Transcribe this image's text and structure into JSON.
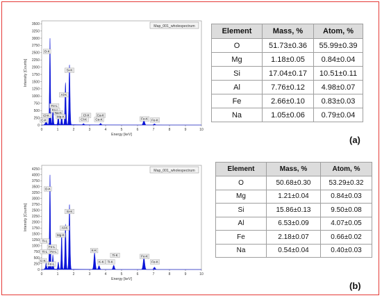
{
  "chart_data": [
    {
      "type": "line",
      "legend": "Map_001_wholespectrum",
      "xlabel": "Energy [keV]",
      "ylabel": "Intensity [Counts]",
      "xlim": [
        0,
        10
      ],
      "ylim": [
        0,
        3600
      ],
      "xticks": [
        "0",
        "1",
        "2",
        "3",
        "4",
        "5",
        "6",
        "7",
        "8",
        "9",
        "10"
      ],
      "yticks": [
        "0",
        "250",
        "500",
        "750",
        "1000",
        "1250",
        "1500",
        "1750",
        "2000",
        "2250",
        "2500",
        "2750",
        "3000",
        "3250",
        "3500"
      ],
      "peaks": [
        {
          "x": 0.28,
          "y": 180,
          "w": 0.035
        },
        {
          "x": 0.52,
          "y": 2980,
          "w": 0.03
        },
        {
          "x": 0.7,
          "y": 540,
          "w": 0.03
        },
        {
          "x": 1.04,
          "y": 360,
          "w": 0.03
        },
        {
          "x": 1.25,
          "y": 420,
          "w": 0.03
        },
        {
          "x": 1.49,
          "y": 1450,
          "w": 0.035
        },
        {
          "x": 1.74,
          "y": 2080,
          "w": 0.035
        },
        {
          "x": 2.62,
          "y": 40,
          "w": 0.04
        },
        {
          "x": 3.69,
          "y": 55,
          "w": 0.04
        },
        {
          "x": 6.4,
          "y": 160,
          "w": 0.05
        },
        {
          "x": 7.06,
          "y": 40,
          "w": 0.05
        }
      ],
      "labels": [
        {
          "text": "O-K",
          "x": 0.1,
          "y": 2500
        },
        {
          "text": "Si-K",
          "x": 1.45,
          "y": 1850
        },
        {
          "text": "Al-K",
          "x": 1.1,
          "y": 1000
        },
        {
          "text": "Fe-L",
          "x": 0.5,
          "y": 620
        },
        {
          "text": "Fe-L",
          "x": 0.55,
          "y": 470
        },
        {
          "text": "Na-K",
          "x": 0.75,
          "y": 380
        },
        {
          "text": "Mg-K",
          "x": 0.9,
          "y": 250
        },
        {
          "text": "Cl-K",
          "x": 0.0,
          "y": 280
        },
        {
          "text": "C-K",
          "x": -0.1,
          "y": 130
        },
        {
          "text": "Cl-K",
          "x": 2.5,
          "y": 290
        },
        {
          "text": "Cl-K",
          "x": 2.35,
          "y": 150
        },
        {
          "text": "Ca-K",
          "x": 3.4,
          "y": 290
        },
        {
          "text": "Ca-K",
          "x": 3.3,
          "y": 150
        },
        {
          "text": "Fe-K",
          "x": 6.15,
          "y": 170
        },
        {
          "text": "Fe-K",
          "x": 6.8,
          "y": 130
        }
      ]
    },
    {
      "type": "line",
      "legend": "Map_001_wholespectrum",
      "xlabel": "Energy [keV]",
      "ylabel": "Intensity [Counts]",
      "xlim": [
        0,
        10
      ],
      "ylim": [
        0,
        4400
      ],
      "xticks": [
        "0",
        "1",
        "2",
        "3",
        "4",
        "5",
        "6",
        "7",
        "8",
        "9",
        "10"
      ],
      "yticks": [
        "0",
        "250",
        "500",
        "750",
        "1000",
        "1250",
        "1500",
        "1750",
        "2000",
        "2250",
        "2500",
        "2750",
        "3000",
        "3250",
        "3500",
        "3750",
        "4000",
        "4250"
      ],
      "peaks": [
        {
          "x": 0.28,
          "y": 250,
          "w": 0.035
        },
        {
          "x": 0.45,
          "y": 200,
          "w": 0.03
        },
        {
          "x": 0.52,
          "y": 3970,
          "w": 0.03
        },
        {
          "x": 0.7,
          "y": 600,
          "w": 0.03
        },
        {
          "x": 1.04,
          "y": 300,
          "w": 0.03
        },
        {
          "x": 1.25,
          "y": 1500,
          "w": 0.03
        },
        {
          "x": 1.49,
          "y": 1900,
          "w": 0.035
        },
        {
          "x": 1.74,
          "y": 2750,
          "w": 0.035
        },
        {
          "x": 3.31,
          "y": 700,
          "w": 0.045
        },
        {
          "x": 3.59,
          "y": 160,
          "w": 0.045
        },
        {
          "x": 4.51,
          "y": 180,
          "w": 0.045
        },
        {
          "x": 6.4,
          "y": 500,
          "w": 0.05
        },
        {
          "x": 7.06,
          "y": 100,
          "w": 0.05
        }
      ],
      "labels": [
        {
          "text": "O-K",
          "x": 0.15,
          "y": 3350
        },
        {
          "text": "Si-K",
          "x": 1.45,
          "y": 2400
        },
        {
          "text": "Al-K",
          "x": 1.15,
          "y": 1700
        },
        {
          "text": "Mg-K",
          "x": 0.9,
          "y": 1400
        },
        {
          "text": "Fe-L",
          "x": 0.35,
          "y": 900
        },
        {
          "text": "Fe-L",
          "x": 0.45,
          "y": 700
        },
        {
          "text": "Ti-L",
          "x": -0.1,
          "y": 1150
        },
        {
          "text": "Ti-L",
          "x": -0.1,
          "y": 700
        },
        {
          "text": "C-K",
          "x": -0.15,
          "y": 320
        },
        {
          "text": "Fe-L",
          "x": 0.3,
          "y": 180
        },
        {
          "text": "K-K",
          "x": 3.05,
          "y": 750
        },
        {
          "text": "K-K",
          "x": 3.5,
          "y": 270
        },
        {
          "text": "Ti-K",
          "x": 4.3,
          "y": 550
        },
        {
          "text": "Ti-K",
          "x": 4.0,
          "y": 270
        },
        {
          "text": "Fe-K",
          "x": 6.15,
          "y": 500
        },
        {
          "text": "Fe-K",
          "x": 6.8,
          "y": 270
        }
      ]
    }
  ],
  "tables": [
    {
      "headers": [
        "Element",
        "Mass, %",
        "Atom, %"
      ],
      "rows": [
        [
          "O",
          "51.73±0.36",
          "55.99±0.39"
        ],
        [
          "Mg",
          "1.18±0.05",
          "0.84±0.04"
        ],
        [
          "Si",
          "17.04±0.17",
          "10.51±0.11"
        ],
        [
          "Al",
          "7.76±0.12",
          "4.98±0.07"
        ],
        [
          "Fe",
          "2.66±0.10",
          "0.83±0.03"
        ],
        [
          "Na",
          "1.05±0.06",
          "0.79±0.04"
        ]
      ]
    },
    {
      "headers": [
        "Element",
        "Mass, %",
        "Atom, %"
      ],
      "rows": [
        [
          "O",
          "50.68±0.30",
          "53.29±0.32"
        ],
        [
          "Mg",
          "1.21±0.04",
          "0.84±0.03"
        ],
        [
          "Si",
          "15.86±0.13",
          "9.50±0.08"
        ],
        [
          "Al",
          "6.53±0.09",
          "4.07±0.05"
        ],
        [
          "Fe",
          "2.18±0.07",
          "0.66±0.02"
        ],
        [
          "Na",
          "0.54±0.04",
          "0.40±0.03"
        ]
      ]
    }
  ],
  "captions": [
    "(a)",
    "(b)"
  ],
  "colors": {
    "frame": "#e53935",
    "spectrum": "#0a14d8",
    "header": "#dcdcdc"
  }
}
